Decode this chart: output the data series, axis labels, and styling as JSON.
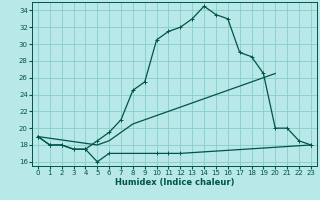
{
  "xlabel": "Humidex (Indice chaleur)",
  "bg_color": "#b8e8e8",
  "grid_color": "#88cccc",
  "line_color": "#005544",
  "xlim": [
    -0.5,
    23.5
  ],
  "ylim": [
    15.5,
    35.0
  ],
  "xticks": [
    0,
    1,
    2,
    3,
    4,
    5,
    6,
    7,
    8,
    9,
    10,
    11,
    12,
    13,
    14,
    15,
    16,
    17,
    18,
    19,
    20,
    21,
    22,
    23
  ],
  "yticks": [
    16,
    18,
    20,
    22,
    24,
    26,
    28,
    30,
    32,
    34
  ],
  "curve_main_x": [
    0,
    1,
    2,
    3,
    4,
    5,
    6,
    7,
    8,
    9,
    10,
    11,
    12,
    13,
    14,
    15,
    16,
    17,
    18,
    19,
    20,
    21,
    22,
    23
  ],
  "curve_main_y": [
    19,
    18,
    18,
    17.5,
    17.5,
    18.5,
    19.5,
    21,
    24.5,
    25.5,
    30.5,
    31.5,
    32,
    33,
    34.5,
    33.5,
    33,
    29,
    28.5,
    26.5,
    20.0,
    20,
    18.5,
    18
  ],
  "curve_flat_x": [
    0,
    1,
    2,
    3,
    4,
    5,
    6,
    10,
    11,
    12,
    23
  ],
  "curve_flat_y": [
    19,
    18,
    18,
    17.5,
    17.5,
    16.0,
    17.0,
    17.0,
    17.0,
    17.0,
    18
  ],
  "curve_diag_x": [
    0,
    5,
    6,
    7,
    8,
    9,
    10,
    11,
    12,
    13,
    14,
    15,
    16,
    17,
    18,
    19,
    20
  ],
  "curve_diag_y": [
    19,
    18,
    18.5,
    19.5,
    20.5,
    21,
    21.5,
    22,
    22.5,
    23,
    23.5,
    24,
    24.5,
    25,
    25.5,
    26,
    26.5
  ],
  "marker_size": 3.5,
  "linewidth": 0.9
}
